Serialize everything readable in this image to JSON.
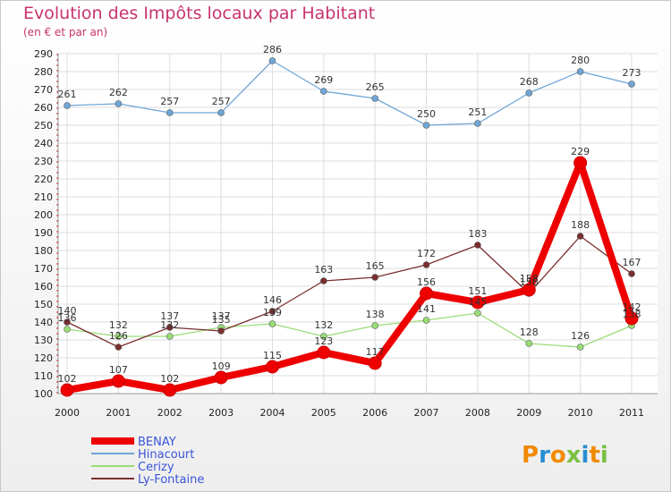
{
  "chart_data": {
    "type": "line",
    "title": "Evolution des Impôts locaux par Habitant",
    "subtitle": "(en € et par an)",
    "x": [
      "2000",
      "2001",
      "2002",
      "2003",
      "2004",
      "2005",
      "2006",
      "2007",
      "2008",
      "2009",
      "2010",
      "2011"
    ],
    "ylim": [
      100,
      290
    ],
    "yticks": [
      100,
      110,
      120,
      130,
      140,
      150,
      160,
      170,
      180,
      190,
      200,
      210,
      220,
      230,
      240,
      250,
      260,
      270,
      280,
      290
    ],
    "grid": true,
    "legend_position": "bottom-left",
    "series": [
      {
        "name": "BENAY",
        "color": "#ee0000",
        "values": [
          102,
          107,
          102,
          109,
          115,
          123,
          117,
          156,
          151,
          158,
          229,
          142
        ],
        "labels": [
          "102",
          "107",
          "102",
          "109",
          "115",
          "123",
          "117",
          "156",
          "151",
          "158",
          "229",
          "142"
        ]
      },
      {
        "name": "Hinacourt",
        "color": "#6fa6d6",
        "values": [
          261,
          262,
          257,
          257,
          286,
          269,
          265,
          250,
          251,
          268,
          280,
          273
        ],
        "labels": [
          "261",
          "262",
          "257",
          "257",
          "286",
          "269",
          "265",
          "250",
          "251",
          "268",
          "280",
          "273"
        ]
      },
      {
        "name": "Cerizy",
        "color": "#99dd77",
        "values": [
          136,
          132,
          132,
          137,
          139,
          132,
          138,
          141,
          145,
          128,
          126,
          138
        ],
        "labels": [
          "136",
          "132",
          "132",
          "137",
          "139",
          "132",
          "138",
          "141",
          "145",
          "128",
          "126",
          "138"
        ]
      },
      {
        "name": "Ly-Fontaine",
        "color": "#7a2e2e",
        "values": [
          140,
          126,
          137,
          135,
          146,
          163,
          165,
          172,
          183,
          156,
          188,
          167
        ],
        "labels": [
          "140",
          "126",
          "137",
          "135",
          "146",
          "163",
          "165",
          "172",
          "183",
          "156",
          "188",
          "167"
        ]
      }
    ]
  },
  "logo": {
    "text": "Proxiti",
    "colors": [
      "#f08a00",
      "#2a8ed0",
      "#f08a00",
      "#7ac043",
      "#2a8ed0",
      "#f08a00",
      "#7ac043"
    ]
  }
}
